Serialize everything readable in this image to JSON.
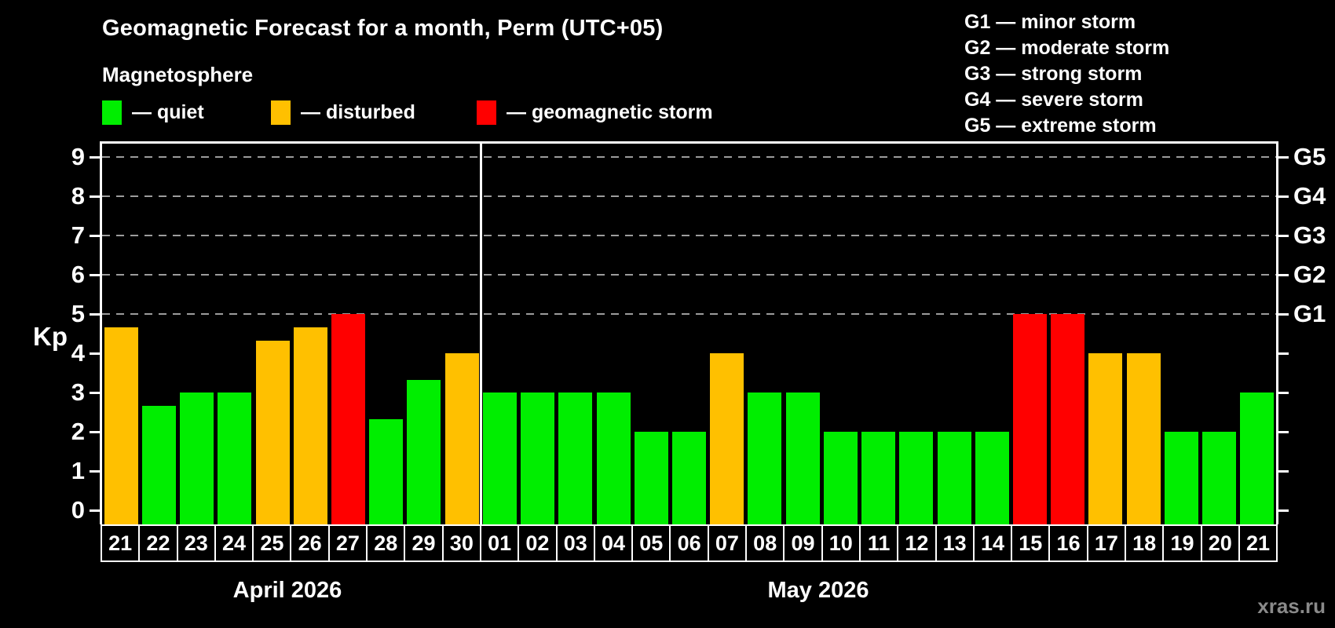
{
  "chart_data": {
    "type": "bar",
    "title": "Geomagnetic Forecast for a month, Perm (UTC+05)",
    "subtitle": "Magnetosphere",
    "ylabel": "Kp",
    "ylim": [
      -0.36,
      9.34
    ],
    "yticks": [
      0,
      1,
      2,
      3,
      4,
      5,
      6,
      7,
      8,
      9
    ],
    "gridlines_at": [
      5,
      6,
      7,
      8,
      9
    ],
    "grid": "dashed horizontal at storm levels only",
    "legend_position": "top-left above plot",
    "legend": [
      {
        "status": "quiet",
        "label": "— quiet"
      },
      {
        "status": "disturbed",
        "label": "— disturbed"
      },
      {
        "status": "storm",
        "label": "— geomagnetic storm"
      }
    ],
    "g_legend": [
      "G1 — minor storm",
      "G2 — moderate storm",
      "G3 — strong storm",
      "G4 — severe storm",
      "G5 — extreme storm"
    ],
    "right_axis": [
      {
        "label": "G1",
        "kp": 5
      },
      {
        "label": "G2",
        "kp": 6
      },
      {
        "label": "G3",
        "kp": 7
      },
      {
        "label": "G4",
        "kp": 8
      },
      {
        "label": "G5",
        "kp": 9
      }
    ],
    "status_colors": {
      "quiet": "#00EE00",
      "disturbed": "#FFC000",
      "storm": "#FF0000"
    },
    "months": [
      {
        "label": "April 2026",
        "days": [
          {
            "day": "21",
            "kp": 4.67,
            "status": "disturbed"
          },
          {
            "day": "22",
            "kp": 2.67,
            "status": "quiet"
          },
          {
            "day": "23",
            "kp": 3.0,
            "status": "quiet"
          },
          {
            "day": "24",
            "kp": 3.0,
            "status": "quiet"
          },
          {
            "day": "25",
            "kp": 4.33,
            "status": "disturbed"
          },
          {
            "day": "26",
            "kp": 4.67,
            "status": "disturbed"
          },
          {
            "day": "27",
            "kp": 5.0,
            "status": "storm"
          },
          {
            "day": "28",
            "kp": 2.33,
            "status": "quiet"
          },
          {
            "day": "29",
            "kp": 3.33,
            "status": "quiet"
          },
          {
            "day": "30",
            "kp": 4.0,
            "status": "disturbed"
          }
        ]
      },
      {
        "label": "May 2026",
        "days": [
          {
            "day": "01",
            "kp": 3.0,
            "status": "quiet"
          },
          {
            "day": "02",
            "kp": 3.0,
            "status": "quiet"
          },
          {
            "day": "03",
            "kp": 3.0,
            "status": "quiet"
          },
          {
            "day": "04",
            "kp": 3.0,
            "status": "quiet"
          },
          {
            "day": "05",
            "kp": 2.0,
            "status": "quiet"
          },
          {
            "day": "06",
            "kp": 2.0,
            "status": "quiet"
          },
          {
            "day": "07",
            "kp": 4.0,
            "status": "disturbed"
          },
          {
            "day": "08",
            "kp": 3.0,
            "status": "quiet"
          },
          {
            "day": "09",
            "kp": 3.0,
            "status": "quiet"
          },
          {
            "day": "10",
            "kp": 2.0,
            "status": "quiet"
          },
          {
            "day": "11",
            "kp": 2.0,
            "status": "quiet"
          },
          {
            "day": "12",
            "kp": 2.0,
            "status": "quiet"
          },
          {
            "day": "13",
            "kp": 2.0,
            "status": "quiet"
          },
          {
            "day": "14",
            "kp": 2.0,
            "status": "quiet"
          },
          {
            "day": "15",
            "kp": 5.0,
            "status": "storm"
          },
          {
            "day": "16",
            "kp": 5.0,
            "status": "storm"
          },
          {
            "day": "17",
            "kp": 4.0,
            "status": "disturbed"
          },
          {
            "day": "18",
            "kp": 4.0,
            "status": "disturbed"
          },
          {
            "day": "19",
            "kp": 2.0,
            "status": "quiet"
          },
          {
            "day": "20",
            "kp": 2.0,
            "status": "quiet"
          },
          {
            "day": "21",
            "kp": 3.0,
            "status": "quiet"
          }
        ]
      }
    ],
    "colors": {
      "background": "#000000",
      "axis": "#FFFFFF",
      "text": "#FFFFFF",
      "gridline": "#9C9C9C",
      "watermark": "#8A8A8A"
    },
    "watermark": "xras.ru"
  }
}
